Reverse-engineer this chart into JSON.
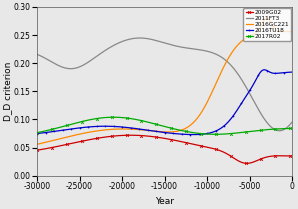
{
  "title": "",
  "xlabel": "Year",
  "ylabel": "D_D criterion",
  "xlim": [
    -30000,
    0
  ],
  "ylim": [
    0.0,
    0.3
  ],
  "xticks": [
    -30000,
    -25000,
    -20000,
    -15000,
    -10000,
    -5000,
    0
  ],
  "yticks": [
    0.0,
    0.05,
    0.1,
    0.15,
    0.2,
    0.25,
    0.3
  ],
  "background_color": "#e8e8e8",
  "legend_labels": [
    "2009G02",
    "2011FT3",
    "2016GC221",
    "2016TU18",
    "2017R02"
  ],
  "legend_colors": [
    "#cc0000",
    "#888888",
    "#ff8800",
    "#0000cc",
    "#00aa00"
  ],
  "figsize": [
    2.98,
    2.09
  ],
  "dpi": 100
}
